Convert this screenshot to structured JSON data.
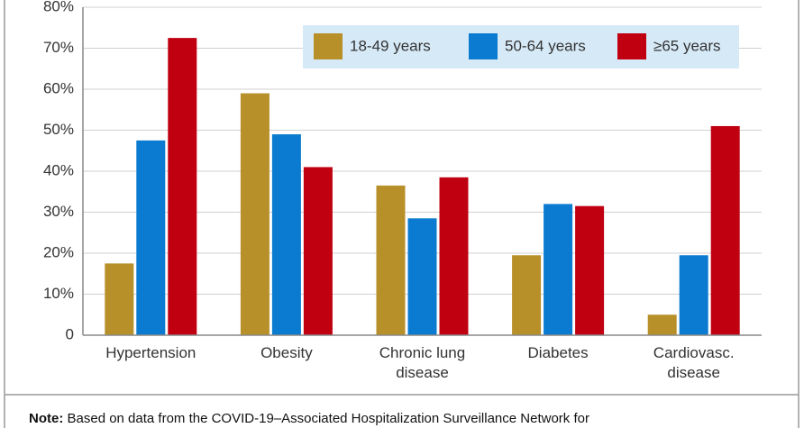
{
  "chart_data": {
    "type": "bar",
    "categories": [
      "Hypertension",
      "Obesity",
      "Chronic lung disease",
      "Diabetes",
      "Cardiovasc. disease"
    ],
    "series": [
      {
        "name": "18-49 years",
        "color": "#b8902a",
        "values": [
          17.5,
          59,
          36.5,
          19.5,
          5
        ]
      },
      {
        "name": "50-64 years",
        "color": "#0a7bd0",
        "values": [
          47.5,
          49,
          28.5,
          32,
          19.5
        ]
      },
      {
        "name": "≥65 years",
        "color": "#c00010",
        "values": [
          72.5,
          41,
          38.5,
          31.5,
          51
        ]
      }
    ],
    "ylim": [
      0,
      80
    ],
    "yticks": [
      0,
      {
        "value": 10,
        "label": "10%"
      },
      {
        "value": 20,
        "label": "20%"
      },
      {
        "value": 30,
        "label": "30%"
      },
      {
        "value": 40,
        "label": "40%"
      },
      {
        "value": 50,
        "label": "50%"
      },
      {
        "value": 60,
        "label": "60%"
      },
      {
        "value": 70,
        "label": "70%"
      },
      {
        "value": 80,
        "label": "80%"
      }
    ],
    "grid": true,
    "legend": "top-right",
    "note_label": "Note:",
    "note": "Based on data from the COVID-19–Associated Hospitalization Surveillance Network for"
  }
}
